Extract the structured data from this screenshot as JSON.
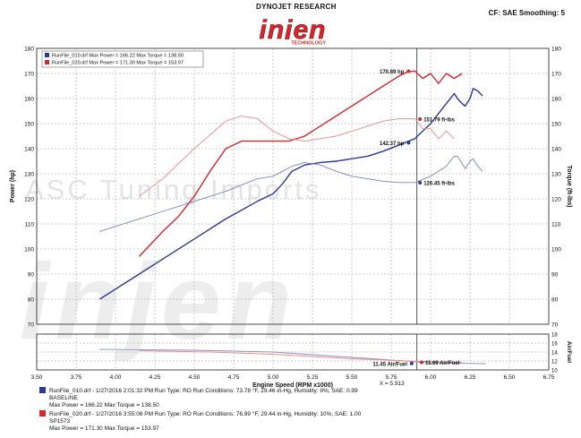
{
  "header": {
    "company": "DYNOJET RESEARCH",
    "brand": "injen",
    "brand_sub": "TECHNOLOGY",
    "settings": "CF: SAE  Smoothing: 5"
  },
  "watermark": {
    "line1": "ASC Tuning Imports",
    "line2": "injen"
  },
  "legend_box": [
    {
      "text": "RunFile_010.drf Max Power = 166.22   Max Torque = 138.50",
      "color": "#2a3a9a"
    },
    {
      "text": "RunFile_020.drf Max Power = 171.30   Max Torque = 153.97",
      "color": "#d8262b"
    }
  ],
  "footer": [
    {
      "color": "#2a3a9a",
      "line1": "RunFile_010.drf - 1/27/2016 2:01:32 PM  Run Type: RO  Run Conditions: 73.78 °F, 29.46 in-Hg,  Humidity:  9%, SAE: 0.99",
      "line2": "BASELINE",
      "line3": "Max Power = 166.22  Max Torque = 138.50"
    },
    {
      "color": "#d8262b",
      "line1": "RunFile_020.drf - 1/27/2016 3:55:06 PM  Run Type: RO  Run Conditions: 76.99 °F, 29.44 in-Hg,  Humidity:  10%, SAE: 1.00",
      "line2": "SP1573",
      "line3": "Max Power = 171.30  Max Torque = 153.97"
    }
  ],
  "chart_data": {
    "type": "line",
    "xlabel": "Engine Speed (RPM x1000)",
    "ylabel_left": "Power (hp)",
    "ylabel_right": "Torque (ft-lbs)",
    "ylabel_af": "Air/Fuel",
    "xlim": [
      3.5,
      6.75
    ],
    "x_ticks": [
      "3.50",
      "3.75",
      "4.00",
      "4.25",
      "4.50",
      "4.75",
      "5.00",
      "5.25",
      "5.50",
      "5.75",
      "6.00",
      "6.25",
      "6.50",
      "6.75"
    ],
    "ylim": [
      70,
      180
    ],
    "y_ticks": [
      "70",
      "80",
      "90",
      "100",
      "110",
      "120",
      "130",
      "140",
      "150",
      "160",
      "170",
      "180"
    ],
    "af_lim": [
      10,
      18
    ],
    "af_ticks": [
      "10",
      "12",
      "14",
      "16",
      "18"
    ],
    "cursor_x": 5.913,
    "cursor_label": "X = 5.913",
    "grid": true,
    "series": [
      {
        "name": "RunFile_010.drf",
        "quantity": "Power",
        "color": "#2a3a9a",
        "width": 1.4,
        "x": [
          3.9,
          4.1,
          4.3,
          4.5,
          4.7,
          4.9,
          5.0,
          5.06,
          5.12,
          5.2,
          5.3,
          5.4,
          5.5,
          5.6,
          5.7,
          5.8,
          5.9,
          6.0,
          6.1,
          6.15,
          6.17,
          6.2,
          6.22,
          6.25,
          6.27,
          6.3,
          6.33
        ],
        "y": [
          80,
          88,
          96,
          104,
          112,
          119,
          122,
          126,
          131,
          133.5,
          134.5,
          135,
          136,
          137,
          139,
          141.5,
          144,
          150,
          158,
          162,
          160,
          158,
          157,
          160,
          164,
          163,
          161
        ]
      },
      {
        "name": "RunFile_010.drf",
        "quantity": "Torque",
        "color": "#7a82c8",
        "width": 0.9,
        "x": [
          3.9,
          4.1,
          4.3,
          4.5,
          4.7,
          4.9,
          5.0,
          5.06,
          5.12,
          5.2,
          5.3,
          5.4,
          5.5,
          5.6,
          5.7,
          5.8,
          5.9,
          6.0,
          6.1,
          6.15,
          6.17,
          6.2,
          6.22,
          6.25,
          6.27,
          6.3,
          6.33
        ],
        "y": [
          107,
          111,
          115,
          119,
          123,
          128,
          129,
          131,
          133,
          134.5,
          133.5,
          131,
          129,
          128,
          127,
          126.5,
          126.5,
          129,
          133,
          137,
          137,
          134,
          132,
          135,
          136,
          133,
          131
        ]
      },
      {
        "name": "RunFile_020.drf",
        "quantity": "Power",
        "color": "#d8262b",
        "width": 1.4,
        "x": [
          4.15,
          4.3,
          4.4,
          4.5,
          4.6,
          4.7,
          4.8,
          4.9,
          5.0,
          5.1,
          5.2,
          5.3,
          5.4,
          5.5,
          5.6,
          5.7,
          5.8,
          5.85,
          5.9,
          5.95,
          6.0,
          6.05,
          6.1,
          6.15,
          6.2
        ],
        "y": [
          97,
          107,
          113,
          121,
          131,
          140,
          143,
          143,
          143,
          143,
          145,
          149,
          153,
          157,
          161,
          165,
          169,
          170.5,
          171,
          168,
          170,
          166,
          170,
          168,
          170
        ]
      },
      {
        "name": "RunFile_020.drf",
        "quantity": "Torque",
        "color": "#f08a8a",
        "width": 0.9,
        "x": [
          4.15,
          4.3,
          4.5,
          4.7,
          4.8,
          4.9,
          5.0,
          5.1,
          5.2,
          5.3,
          5.4,
          5.5,
          5.6,
          5.7,
          5.8,
          5.85,
          5.9,
          5.95,
          6.0,
          6.05,
          6.1,
          6.15
        ],
        "y": [
          121,
          128,
          140,
          151,
          153,
          152,
          147,
          144,
          143,
          144,
          145,
          147,
          149,
          151,
          152,
          152,
          152,
          148,
          148,
          144,
          147,
          144
        ]
      },
      {
        "name": "RunFile_010.drf",
        "quantity": "Air/Fuel",
        "color": "#8a90cc",
        "width": 0.9,
        "x": [
          3.9,
          4.5,
          5.0,
          5.5,
          6.0,
          6.35
        ],
        "y": [
          14.6,
          14.4,
          14.0,
          12.8,
          11.6,
          11.4
        ]
      },
      {
        "name": "RunFile_020.drf",
        "quantity": "Air/Fuel",
        "color": "#f08a8a",
        "width": 0.9,
        "x": [
          4.15,
          4.6,
          5.0,
          5.5,
          6.0,
          6.2
        ],
        "y": [
          14.3,
          14.0,
          13.5,
          12.5,
          11.8,
          11.7
        ]
      }
    ],
    "annotations": [
      {
        "text": "170.89 hp",
        "x": 5.86,
        "y": 170.89,
        "color": "#d8262b",
        "side": "left",
        "pane": "main"
      },
      {
        "text": "151.79 ft-lbs",
        "x": 5.95,
        "y": 151.79,
        "color": "#d8262b",
        "side": "right",
        "pane": "main"
      },
      {
        "text": "142.37 hp",
        "x": 5.86,
        "y": 142.37,
        "color": "#2a3a9a",
        "side": "left",
        "pane": "main"
      },
      {
        "text": "126.45 ft-lbs",
        "x": 5.95,
        "y": 126.45,
        "color": "#2a3a9a",
        "side": "right",
        "pane": "main"
      },
      {
        "text": "11.45 Air/Fuel",
        "x": 5.88,
        "y": 11.45,
        "color": "#2a3a9a",
        "side": "left",
        "pane": "af"
      },
      {
        "text": "11.69 Air/Fuel",
        "x": 5.96,
        "y": 11.69,
        "color": "#d8262b",
        "side": "right",
        "pane": "af"
      }
    ]
  }
}
